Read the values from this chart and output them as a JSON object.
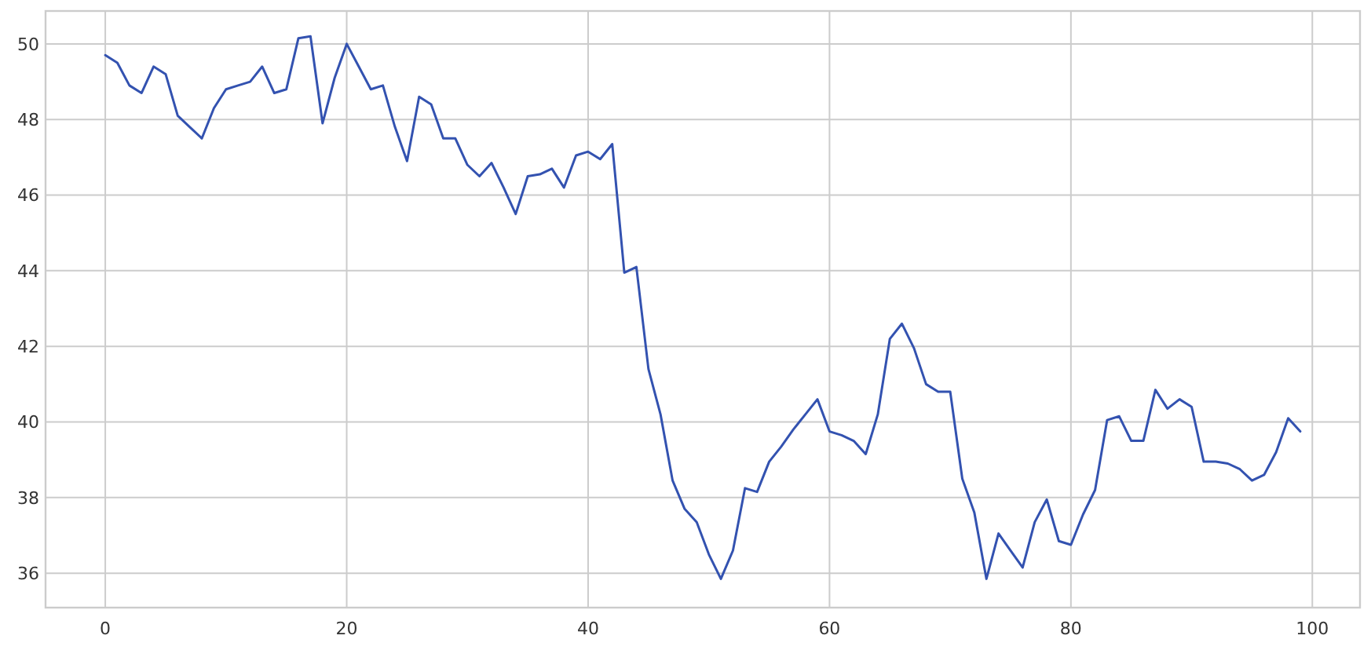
{
  "chart_data": {
    "type": "line",
    "x": [
      0,
      1,
      2,
      3,
      4,
      5,
      6,
      7,
      8,
      9,
      10,
      11,
      12,
      13,
      14,
      15,
      16,
      17,
      18,
      19,
      20,
      21,
      22,
      23,
      24,
      25,
      26,
      27,
      28,
      29,
      30,
      31,
      32,
      33,
      34,
      35,
      36,
      37,
      38,
      39,
      40,
      41,
      42,
      43,
      44,
      45,
      46,
      47,
      48,
      49,
      50,
      51,
      52,
      53,
      54,
      55,
      56,
      57,
      58,
      59,
      60,
      61,
      62,
      63,
      64,
      65,
      66,
      67,
      68,
      69,
      70,
      71,
      72,
      73,
      74,
      75,
      76,
      77,
      78,
      79,
      80,
      81,
      82,
      83,
      84,
      85,
      86,
      87,
      88,
      89,
      90,
      91,
      92,
      93,
      94,
      95,
      96,
      97,
      98,
      99
    ],
    "series": [
      {
        "color": "#3352b0",
        "values": [
          49.7,
          49.5,
          48.9,
          48.7,
          49.4,
          49.2,
          48.1,
          47.8,
          47.5,
          48.3,
          48.8,
          48.9,
          49.0,
          49.4,
          48.7,
          48.8,
          50.15,
          50.2,
          47.9,
          49.1,
          50.0,
          49.4,
          48.8,
          48.9,
          47.8,
          46.9,
          48.6,
          48.4,
          47.5,
          47.5,
          46.8,
          46.5,
          46.85,
          46.2,
          45.5,
          46.5,
          46.55,
          46.7,
          46.2,
          47.05,
          47.15,
          46.95,
          47.35,
          43.95,
          44.1,
          41.4,
          40.2,
          38.45,
          37.7,
          37.35,
          36.5,
          35.85,
          36.6,
          38.25,
          38.15,
          38.95,
          39.35,
          39.8,
          40.2,
          40.6,
          39.75,
          39.65,
          39.5,
          39.15,
          40.2,
          42.2,
          42.6,
          41.95,
          41.0,
          40.8,
          40.8,
          38.5,
          37.6,
          35.85,
          37.05,
          36.6,
          36.15,
          37.35,
          37.95,
          36.85,
          36.75,
          37.55,
          38.2,
          40.05,
          40.15,
          39.5,
          39.5,
          40.85,
          40.35,
          40.6,
          40.4,
          38.95,
          38.95,
          38.9,
          38.75,
          38.45,
          38.6,
          39.2,
          40.1,
          39.75
        ]
      }
    ],
    "xlim": [
      -4.95,
      103.95
    ],
    "ylim": [
      35.09,
      50.87
    ],
    "xticks": [
      0,
      20,
      40,
      60,
      80,
      100
    ],
    "yticks": [
      36,
      38,
      40,
      42,
      44,
      46,
      48,
      50
    ],
    "grid": true
  }
}
